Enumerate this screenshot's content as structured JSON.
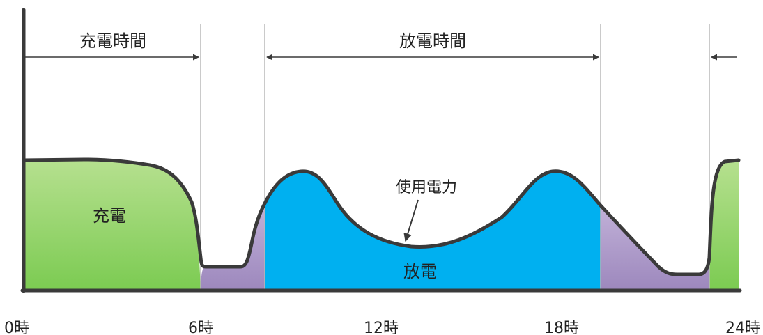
{
  "labels": {
    "charge_time": "充電時間",
    "discharge_time": "放電時間",
    "charge": "充電",
    "discharge": "放電",
    "power_usage": "使用電力"
  },
  "x_ticks": [
    "0時",
    "6時",
    "12時",
    "18時",
    "24時"
  ],
  "colors": {
    "charge_green": "#8fd16a",
    "discharge_blue": "#00b0f0",
    "idle_purple": "#a993c4",
    "curve": "#3a3a3a",
    "axis": "#3a3a3a",
    "divider": "#b8b8b8"
  }
}
